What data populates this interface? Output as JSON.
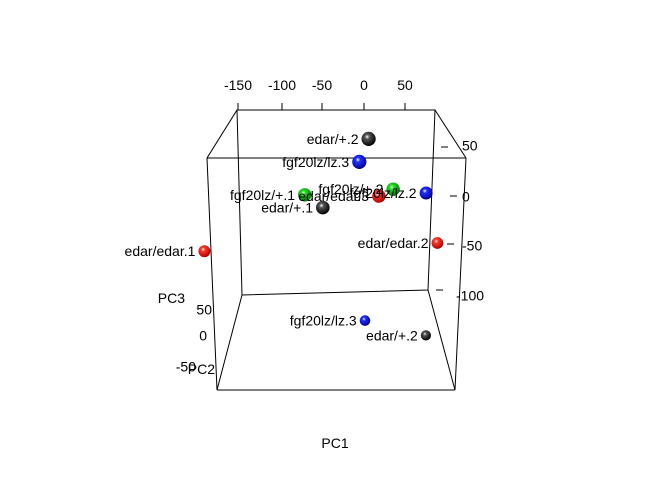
{
  "chart_data": {
    "type": "scatter",
    "projection": "3d",
    "xlabel": "PC1",
    "ylabel": "PC2",
    "zlabel": "PC3",
    "x_ticks": [
      "-150",
      "-100",
      "-50",
      "0",
      "50"
    ],
    "z_ticks": [
      "50",
      "0",
      "-50",
      "-100"
    ],
    "y_ticks": [
      "50",
      "0",
      "-50"
    ],
    "series_colors": {
      "edar/+": "#000000",
      "edar/edar": "#ff0000",
      "fgf20lz/lz": "#0000ff",
      "fgf20lz/+": "#00cc00"
    },
    "points": [
      {
        "label": "edar/+.2",
        "group": "edar/+",
        "x": 10,
        "y": 55,
        "z": 55
      },
      {
        "label": "fgf20lz/lz.3",
        "group": "fgf20lz/lz",
        "x": 0,
        "y": 55,
        "z": 30
      },
      {
        "label": "fgf20lz/lz.2",
        "group": "fgf20lz/lz",
        "x": 70,
        "y": 20,
        "z": 0
      },
      {
        "label": "fgf20lz/+.2",
        "group": "fgf20lz/+",
        "x": 35,
        "y": 30,
        "z": 3
      },
      {
        "label": "edar/edar.3",
        "group": "edar/edar",
        "x": 20,
        "y": 35,
        "z": -5
      },
      {
        "label": "fgf20lz/+.1",
        "group": "fgf20lz/+",
        "x": -60,
        "y": 30,
        "z": -3
      },
      {
        "label": "edar/+.1",
        "group": "edar/+",
        "x": -40,
        "y": 40,
        "z": -18
      },
      {
        "label": "edar/edar.2",
        "group": "edar/edar",
        "x": 80,
        "y": -20,
        "z": -50
      },
      {
        "label": "edar/edar.1",
        "group": "edar/edar",
        "x": -170,
        "y": -10,
        "z": -60
      },
      {
        "label": "fgf20lz/lz.3",
        "group": "fgf20lz/lz",
        "x": 0,
        "y": -60,
        "z": -130
      },
      {
        "label": "edar/+.2",
        "group": "edar/+",
        "x": 65,
        "y": -70,
        "z": -145
      }
    ]
  }
}
